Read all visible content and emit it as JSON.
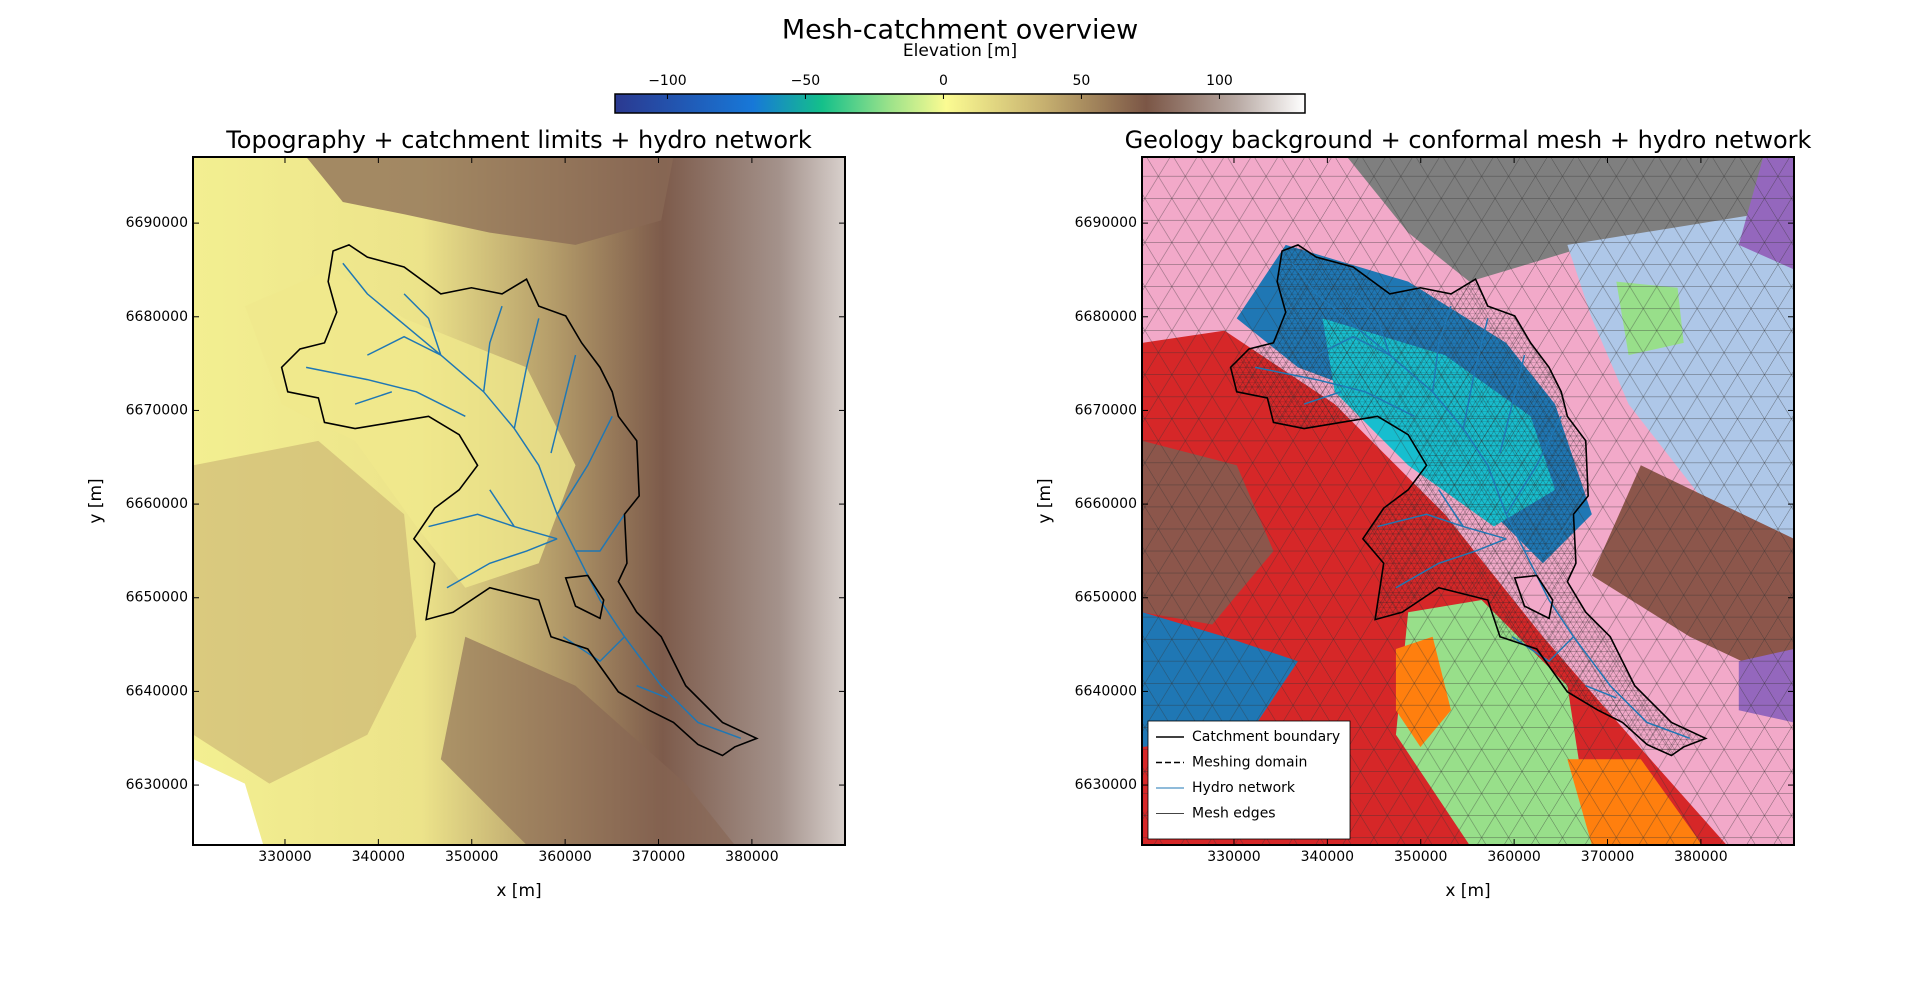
{
  "title": "Mesh-catchment overview",
  "colorbar": {
    "label": "Elevation [m]",
    "lim": [
      -119,
      131
    ],
    "ticks": [
      {
        "value": -100,
        "label": "−100"
      },
      {
        "value": -50,
        "label": "−50"
      },
      0,
      50,
      100
    ]
  },
  "chart_data": [
    {
      "type": "map",
      "title": "Topography + catchment limits + hydro network",
      "x_label": "x [m]",
      "y_label": "y [m]",
      "xlim": [
        320150,
        389970
      ],
      "ylim": [
        6623600,
        6697060
      ],
      "xticks": [
        330000,
        340000,
        350000,
        360000,
        370000,
        380000
      ],
      "yticks": [
        6630000,
        6640000,
        6650000,
        6660000,
        6670000,
        6680000,
        6690000
      ]
    },
    {
      "type": "map",
      "title": "Geology background + conformal mesh + hydro network",
      "x_label": "x [m]",
      "y_label": "y [m]",
      "xlim": [
        320150,
        389970
      ],
      "ylim": [
        6623600,
        6697060
      ],
      "xticks": [
        330000,
        340000,
        350000,
        360000,
        370000,
        380000
      ],
      "yticks": [
        6630000,
        6640000,
        6650000,
        6660000,
        6670000,
        6680000,
        6690000
      ],
      "legend": {
        "loc": "lower left",
        "entries": [
          {
            "name": "Catchment boundary",
            "color": "#000000",
            "linestyle": "solid"
          },
          {
            "name": "Meshing domain",
            "color": "#000000",
            "linestyle": "dashed"
          },
          {
            "name": "Hydro network",
            "color": "#1f77b4",
            "linestyle": "solid"
          },
          {
            "name": "Mesh edges",
            "color": "#444444",
            "linestyle": "solid"
          }
        ]
      }
    }
  ]
}
